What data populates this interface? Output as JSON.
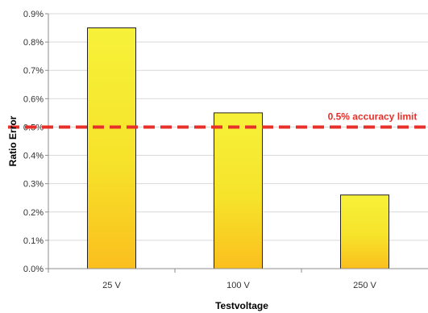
{
  "chart_data": {
    "type": "bar",
    "categories": [
      "25 V",
      "100 V",
      "250 V"
    ],
    "values": [
      0.85,
      0.55,
      0.26
    ],
    "ylim": [
      0,
      0.9
    ],
    "yticks": [
      0.0,
      0.1,
      0.2,
      0.3,
      0.4,
      0.5,
      0.6,
      0.7,
      0.8,
      0.9
    ],
    "ytick_labels": [
      "0.0%",
      "0.1%",
      "0.2%",
      "0.3%",
      "0.4%",
      "0.5%",
      "0.6%",
      "0.7%",
      "0.8%",
      "0.9%"
    ],
    "xlabel": "Testvoltage",
    "ylabel": "Ratio Error",
    "grid": true,
    "reference_line": {
      "value": 0.5,
      "label": "0.5% accuracy limit",
      "color": "#e8302a",
      "style": "dashed"
    },
    "colors": {
      "bar_top": "#f7f13a",
      "bar_bottom": "#fbbf1e",
      "bar_edge": "#222222",
      "grid": "#d9d9d9",
      "axis": "#8c8c8c"
    }
  }
}
